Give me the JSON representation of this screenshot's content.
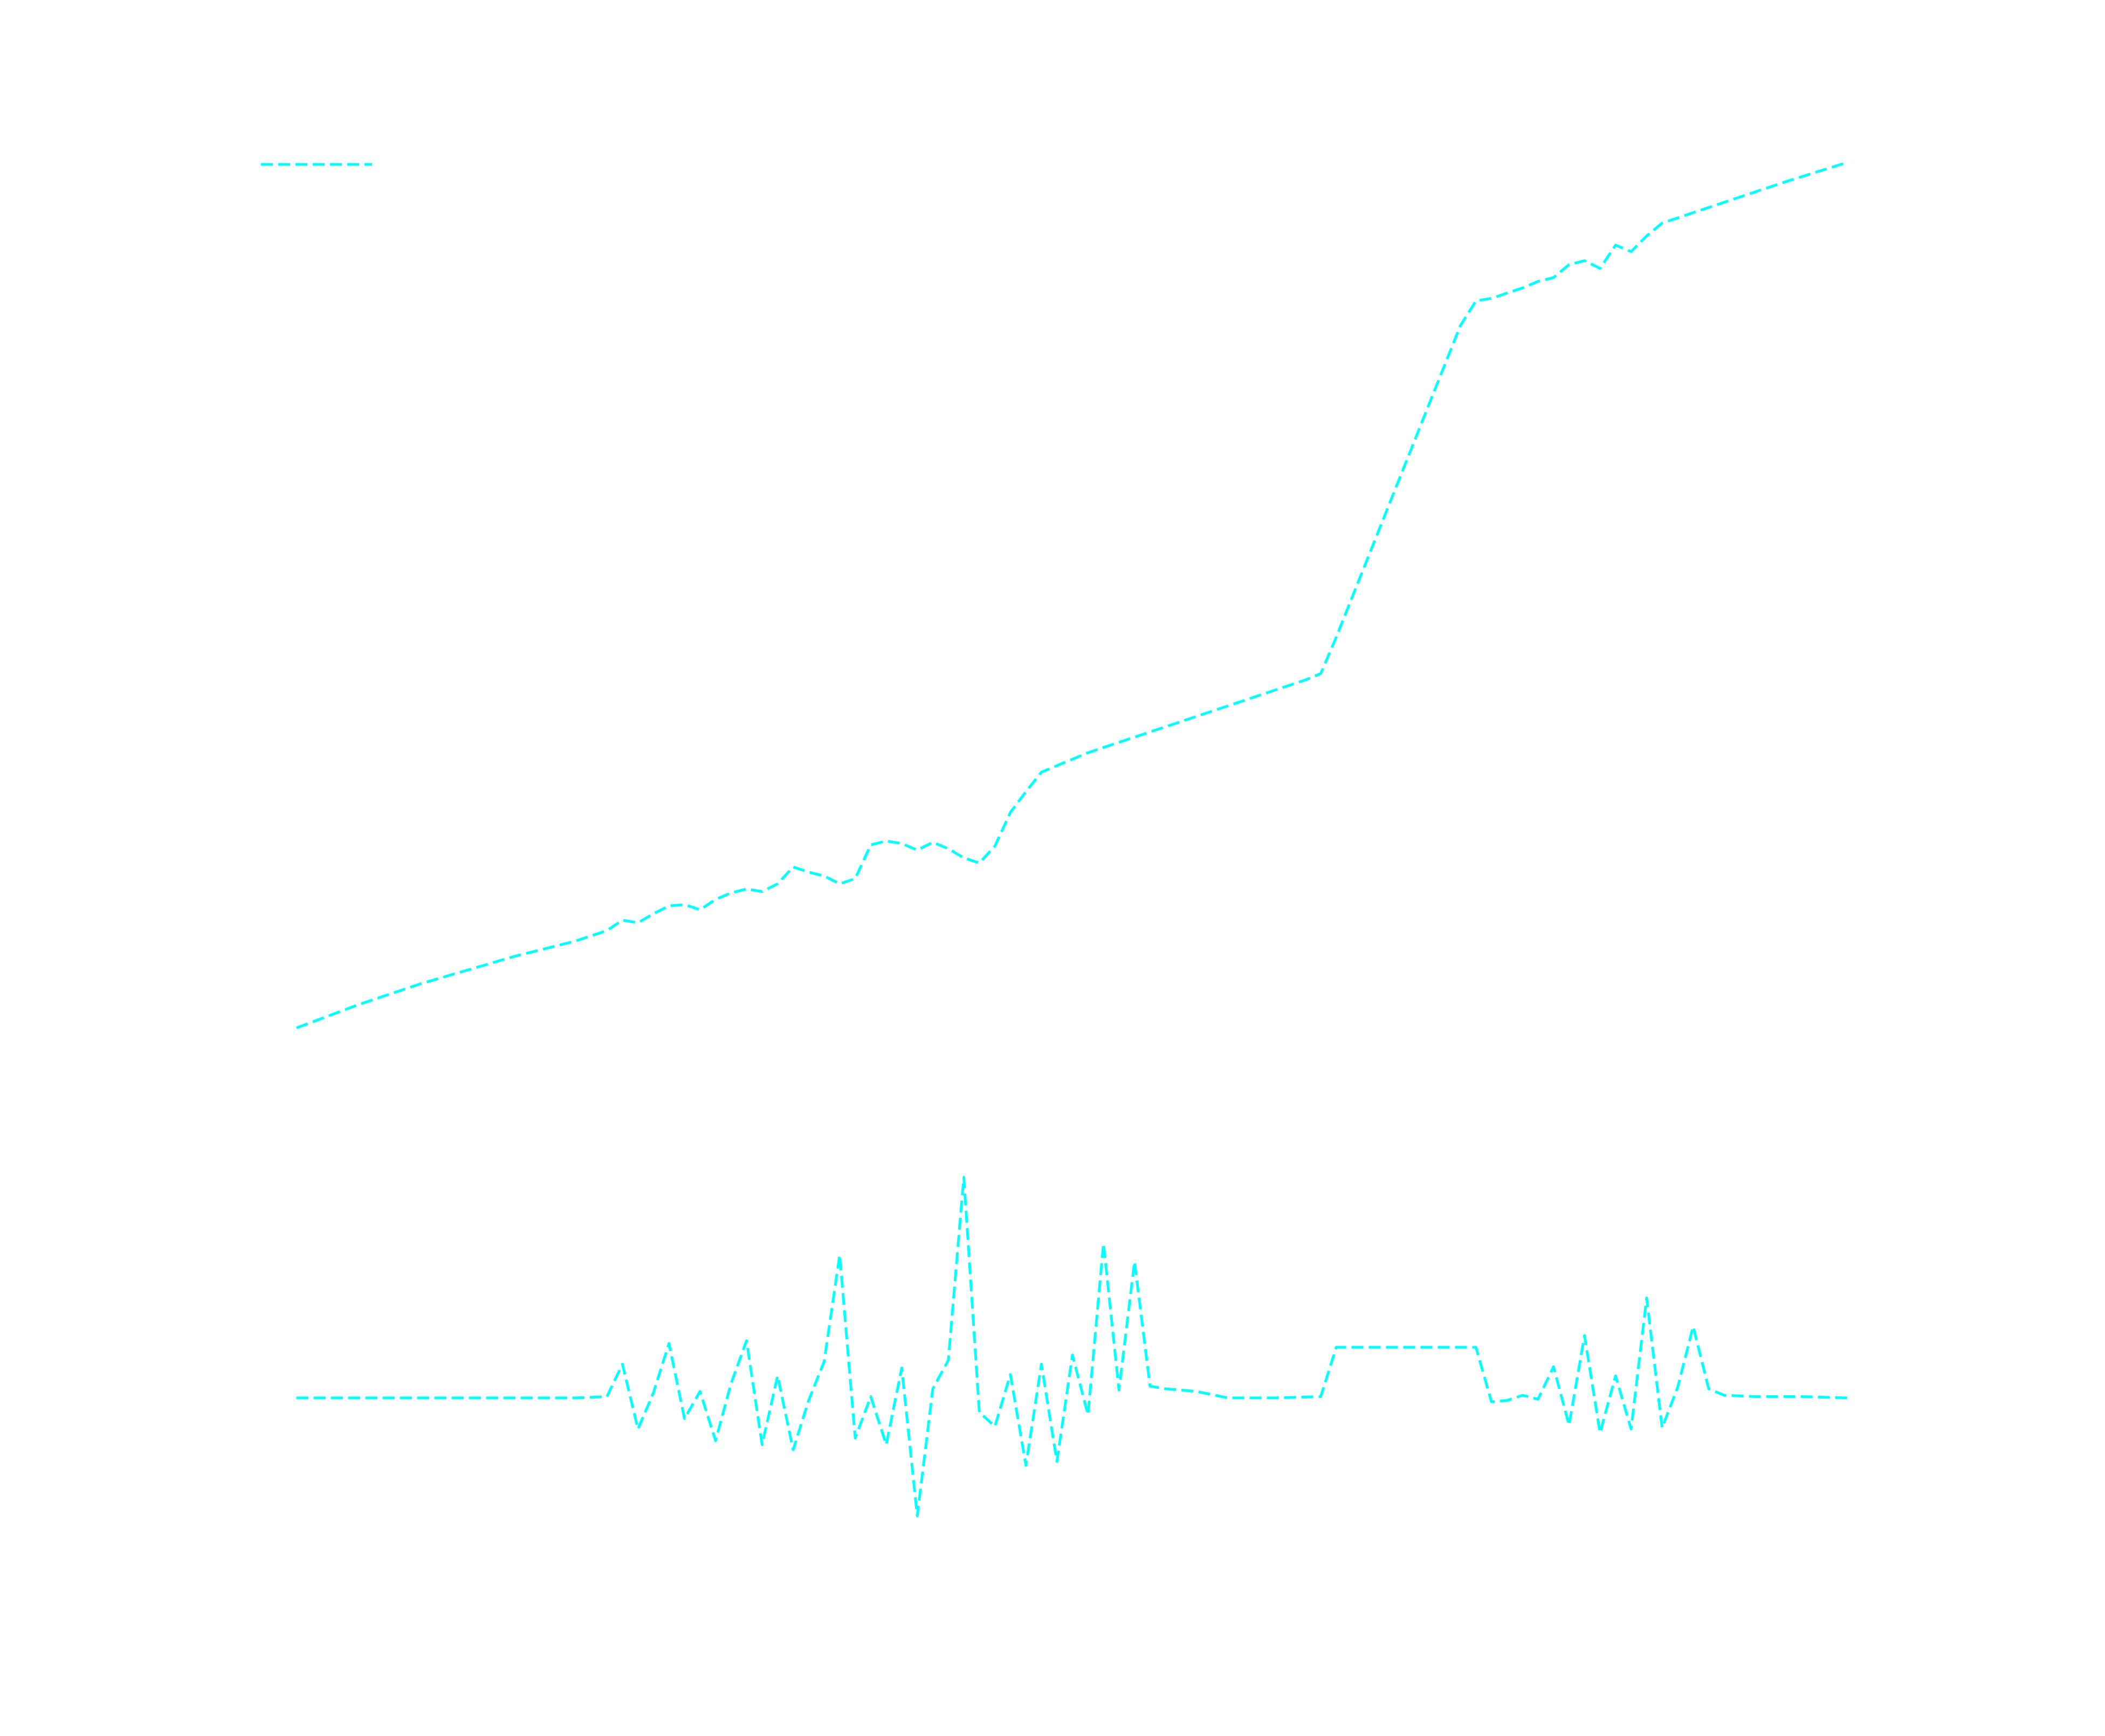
{
  "chart_data": {
    "type": "line",
    "title": "",
    "xlabel": "",
    "ylabel": "",
    "grid": false,
    "axes_visible": false,
    "legend": {
      "placement": "top-left",
      "entries": [
        ""
      ]
    },
    "x_range": [
      0,
      100
    ],
    "y_range": [
      -14,
      100
    ],
    "series": [
      {
        "name": "",
        "color": "#00ffff",
        "style": "dashed",
        "points": [
          [
            0,
            28.5
          ],
          [
            2,
            29.4
          ],
          [
            4,
            30.3
          ],
          [
            6,
            31.1
          ],
          [
            8,
            31.9
          ],
          [
            10,
            32.6
          ],
          [
            12,
            33.3
          ],
          [
            14,
            34.0
          ],
          [
            16,
            34.6
          ],
          [
            18,
            35.2
          ],
          [
            20,
            36.0
          ],
          [
            21,
            36.8
          ],
          [
            22,
            36.6
          ],
          [
            23,
            37.3
          ],
          [
            24,
            37.9
          ],
          [
            25,
            38.0
          ],
          [
            26,
            37.6
          ],
          [
            27,
            38.4
          ],
          [
            28,
            38.9
          ],
          [
            29,
            39.2
          ],
          [
            30,
            39.0
          ],
          [
            31,
            39.6
          ],
          [
            32,
            40.9
          ],
          [
            33,
            40.5
          ],
          [
            34,
            40.2
          ],
          [
            35,
            39.6
          ],
          [
            36,
            40.0
          ],
          [
            37,
            42.6
          ],
          [
            38,
            42.9
          ],
          [
            39,
            42.7
          ],
          [
            40,
            42.2
          ],
          [
            41,
            42.8
          ],
          [
            42,
            42.3
          ],
          [
            43,
            41.6
          ],
          [
            44,
            41.2
          ],
          [
            45,
            42.5
          ],
          [
            46,
            45.1
          ],
          [
            47,
            46.7
          ],
          [
            48,
            48.2
          ],
          [
            49,
            48.7
          ],
          [
            51,
            49.7
          ],
          [
            53,
            50.5
          ],
          [
            55,
            51.3
          ],
          [
            57,
            52.1
          ],
          [
            59,
            52.9
          ],
          [
            61,
            53.7
          ],
          [
            63,
            54.5
          ],
          [
            65,
            55.3
          ],
          [
            66,
            55.8
          ],
          [
            67,
            58.6
          ],
          [
            68,
            61.6
          ],
          [
            69,
            64.6
          ],
          [
            70,
            67.6
          ],
          [
            71,
            70.6
          ],
          [
            72,
            73.6
          ],
          [
            73,
            76.6
          ],
          [
            74,
            79.6
          ],
          [
            75,
            82.6
          ],
          [
            76,
            84.5
          ],
          [
            77,
            84.7
          ],
          [
            78,
            85.1
          ],
          [
            79,
            85.5
          ],
          [
            80,
            86.0
          ],
          [
            81,
            86.3
          ],
          [
            82,
            87.3
          ],
          [
            83,
            87.6
          ],
          [
            84,
            87.0
          ],
          [
            85,
            88.8
          ],
          [
            86,
            88.3
          ],
          [
            87,
            89.5
          ],
          [
            88,
            90.5
          ],
          [
            90,
            91.3
          ],
          [
            92,
            92.1
          ],
          [
            94,
            92.9
          ],
          [
            96,
            93.7
          ],
          [
            100,
            95.2
          ]
        ]
      },
      {
        "name": "",
        "color": "#00ffff",
        "style": "dashed",
        "points": [
          [
            0,
            0.0
          ],
          [
            3,
            0.0
          ],
          [
            6,
            0.0
          ],
          [
            9,
            0.0
          ],
          [
            12,
            0.0
          ],
          [
            15,
            0.0
          ],
          [
            18,
            0.0
          ],
          [
            20,
            0.1
          ],
          [
            21,
            2.6
          ],
          [
            22,
            -2.4
          ],
          [
            23,
            0.4
          ],
          [
            24,
            4.2
          ],
          [
            25,
            -1.6
          ],
          [
            26,
            0.5
          ],
          [
            27,
            -3.3
          ],
          [
            28,
            1.1
          ],
          [
            29,
            4.4
          ],
          [
            30,
            -3.6
          ],
          [
            31,
            1.7
          ],
          [
            32,
            -4.0
          ],
          [
            33,
            -0.2
          ],
          [
            34,
            2.8
          ],
          [
            35,
            11.0
          ],
          [
            36,
            -3.1
          ],
          [
            37,
            0.1
          ],
          [
            38,
            -3.6
          ],
          [
            39,
            2.3
          ],
          [
            40,
            -9.1
          ],
          [
            41,
            0.7
          ],
          [
            42,
            2.9
          ],
          [
            43,
            17.0
          ],
          [
            44,
            -1.1
          ],
          [
            45,
            -2.2
          ],
          [
            46,
            1.8
          ],
          [
            47,
            -5.2
          ],
          [
            48,
            2.6
          ],
          [
            49,
            -4.9
          ],
          [
            50,
            3.3
          ],
          [
            51,
            -1.3
          ],
          [
            52,
            11.9
          ],
          [
            53,
            0.6
          ],
          [
            54,
            10.5
          ],
          [
            55,
            0.9
          ],
          [
            56,
            0.7
          ],
          [
            58,
            0.5
          ],
          [
            60,
            0.0
          ],
          [
            63,
            0.0
          ],
          [
            66,
            0.1
          ],
          [
            67,
            3.9
          ],
          [
            70,
            3.9
          ],
          [
            73,
            3.9
          ],
          [
            76,
            3.9
          ],
          [
            77,
            -0.3
          ],
          [
            78,
            -0.2
          ],
          [
            79,
            0.2
          ],
          [
            80,
            -0.1
          ],
          [
            81,
            2.4
          ],
          [
            82,
            -2.1
          ],
          [
            83,
            4.8
          ],
          [
            84,
            -2.7
          ],
          [
            85,
            1.7
          ],
          [
            86,
            -2.4
          ],
          [
            87,
            7.7
          ],
          [
            88,
            -2.3
          ],
          [
            89,
            0.8
          ],
          [
            90,
            5.5
          ],
          [
            91,
            0.7
          ],
          [
            92,
            0.2
          ],
          [
            94,
            0.1
          ],
          [
            97,
            0.1
          ],
          [
            100,
            0.0
          ]
        ]
      }
    ]
  }
}
